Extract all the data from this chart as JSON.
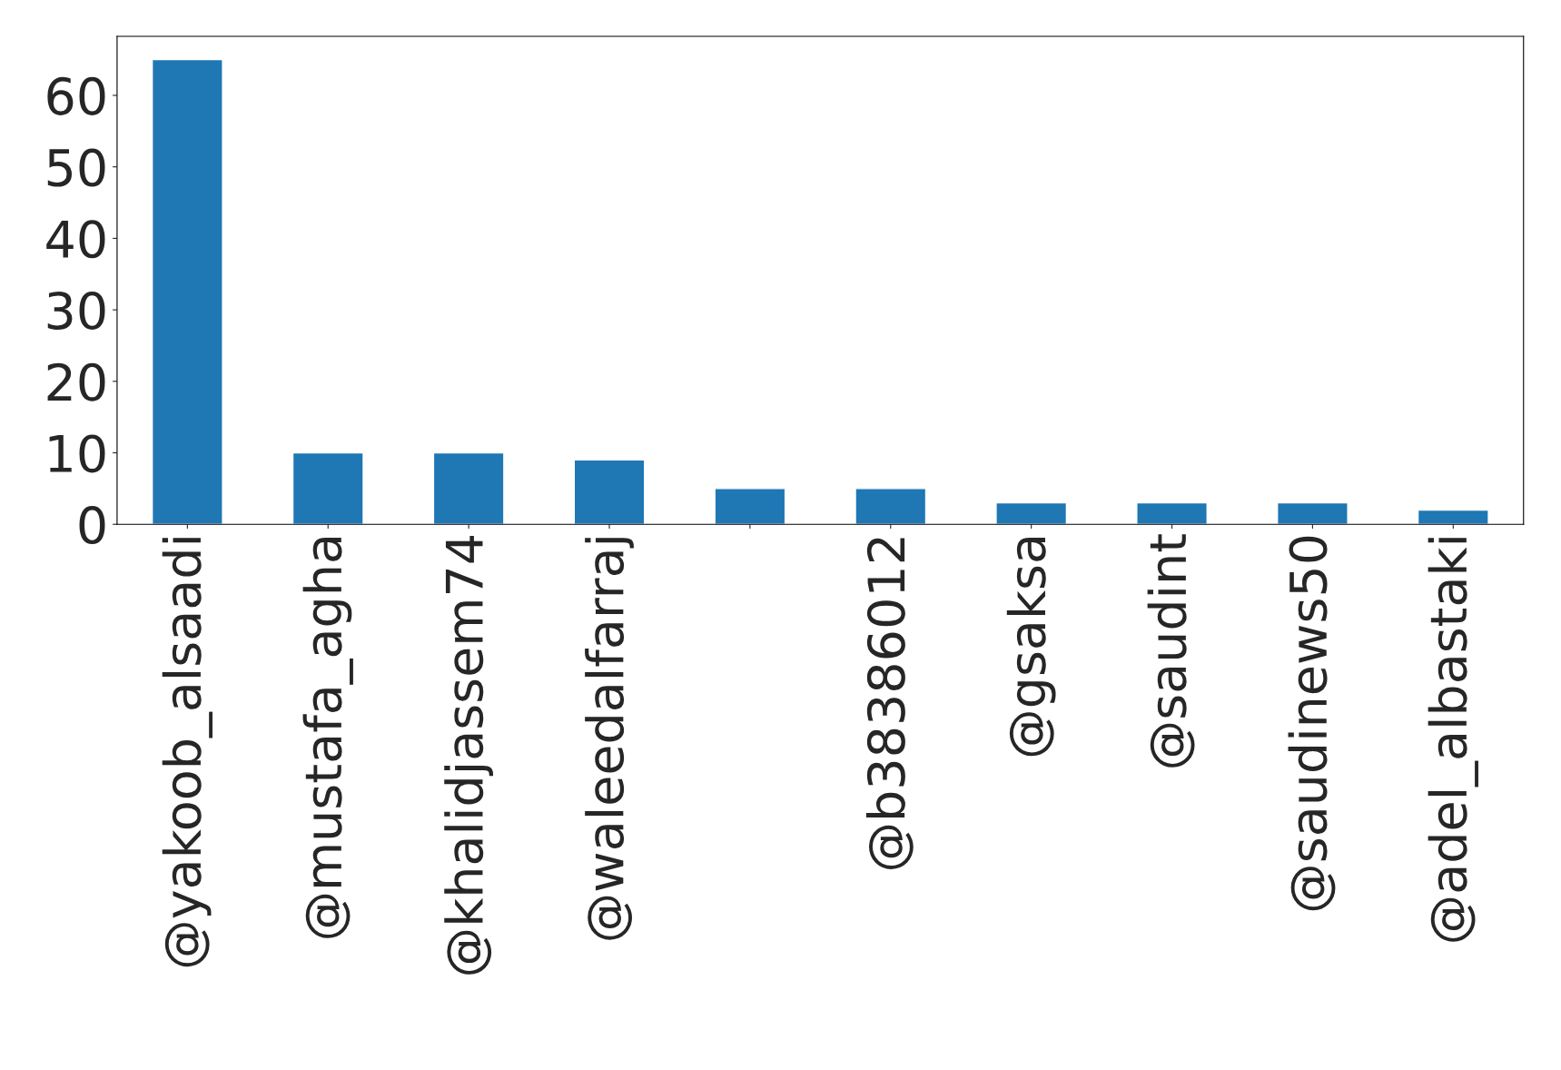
{
  "chart_data": {
    "type": "bar",
    "categories": [
      "@yakoob_alsaadi",
      "@mustafa_agha",
      "@khalidjassem74",
      "@waleedalfarraj",
      null,
      "@b38386012",
      "@gsaksa",
      "@saudint",
      "@saudinews50",
      "@adel_albastaki"
    ],
    "values": [
      65,
      10,
      10,
      9,
      5,
      5,
      3,
      3,
      3,
      2
    ],
    "color": "#1f77b4",
    "ylim": [
      0,
      68.25
    ],
    "yticks": [
      0,
      10,
      20,
      30,
      40,
      50,
      60
    ],
    "grid": false,
    "legend": false
  }
}
